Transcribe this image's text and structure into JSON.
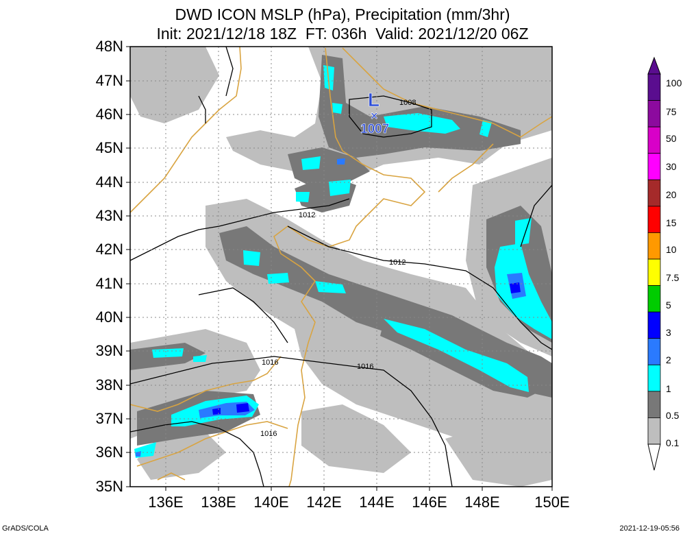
{
  "title": {
    "line1": "DWD ICON MSLP (hPa), Precipitation (mm/3hr)",
    "line2": "Init: 2021/12/18 18Z  FT: 036h  Valid: 2021/12/20 06Z"
  },
  "map": {
    "lat_labels": [
      "48N",
      "47N",
      "46N",
      "45N",
      "44N",
      "43N",
      "42N",
      "41N",
      "40N",
      "39N",
      "38N",
      "37N",
      "36N",
      "35N"
    ],
    "lon_labels": [
      "136E",
      "138E",
      "140E",
      "142E",
      "144E",
      "146E",
      "148E",
      "150E"
    ],
    "low_center": {
      "symbol": "L",
      "value": "1007",
      "marker": "×",
      "color": "#2b4cd8"
    },
    "isobar_labels": [
      "1008",
      "1012",
      "1012",
      "1016",
      "1016",
      "1016"
    ],
    "coast_color": "#d9a441",
    "border_color": "#000000"
  },
  "colorbar": {
    "labels": [
      "100",
      "75",
      "50",
      "30",
      "20",
      "15",
      "10",
      "7.5",
      "5",
      "3",
      "2",
      "1",
      "0.5",
      "0.1"
    ],
    "colors": [
      "#5a0d8f",
      "#8c0a9e",
      "#d800c8",
      "#ff00ff",
      "#a52a2a",
      "#ff0000",
      "#ff9900",
      "#ffff00",
      "#00cc00",
      "#0000ff",
      "#2a7aff",
      "#00ffff",
      "#787878",
      "#bebebe"
    ]
  },
  "footer": {
    "credit": "GrADS/COLA",
    "timestamp": "2021-12-19-05:56"
  }
}
